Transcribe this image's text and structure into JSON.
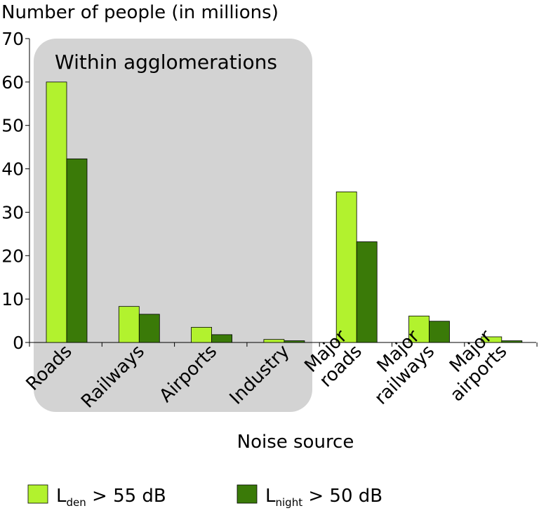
{
  "chart_data": {
    "type": "bar",
    "title": "",
    "ylabel": "Number of people (in millions)",
    "xlabel": "Noise source",
    "ylim": [
      0,
      70
    ],
    "yticks": [
      0,
      10,
      20,
      30,
      40,
      50,
      60,
      70
    ],
    "categories": [
      [
        "Roads"
      ],
      [
        "Railways"
      ],
      [
        "Airports"
      ],
      [
        "Industry"
      ],
      [
        "Major",
        "roads"
      ],
      [
        "Major",
        "railways"
      ],
      [
        "Major",
        "airports"
      ]
    ],
    "series": [
      {
        "name": "L_den > 55 dB",
        "label_main": "L",
        "label_sub": "den",
        "label_rest": " > 55 dB",
        "color": "#b2f22e",
        "values": [
          60,
          8.3,
          3.5,
          0.7,
          34.7,
          6.1,
          1.3
        ]
      },
      {
        "name": "L_night > 50 dB",
        "label_main": "L",
        "label_sub": "night",
        "label_rest": " > 50 dB",
        "color": "#3a7a08",
        "values": [
          42.3,
          6.5,
          1.8,
          0.4,
          23.2,
          4.9,
          0.4
        ]
      }
    ],
    "annotation": "Within agglomerations",
    "legend_position": "bottom"
  }
}
